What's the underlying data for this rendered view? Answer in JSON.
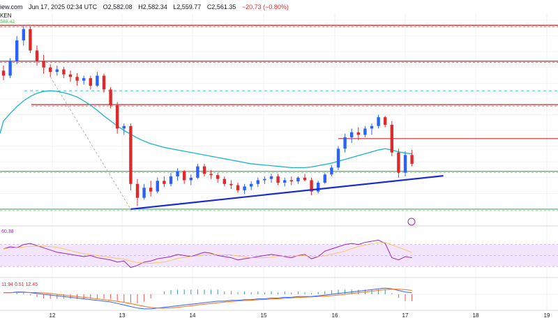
{
  "header": {
    "source": "iew.com",
    "date": "Jun 17, 2025 02:34 UTC",
    "open": "O2,582.08",
    "high": "H2,582.34",
    "low": "L2,559.77",
    "close": "C2,561.35",
    "change": "−20.73 (−0.80%)",
    "left_label": "KEN",
    "price_tag": "588.42"
  },
  "colors": {
    "up": "#2962ff",
    "down": "#e0292b",
    "sma": "#19b5c9",
    "support": "#4caf50",
    "resistance": "#c62828",
    "trendline": "#1b2bd6",
    "rsi_fill": "#f3e5fb",
    "rsi_line": "#9c27b0"
  },
  "chart_data": {
    "type": "candlestick",
    "x_labels": [
      "12",
      "13",
      "14",
      "15",
      "16",
      "17",
      "18",
      "19"
    ],
    "candles": [
      [
        2520,
        2528,
        2505,
        2512
      ],
      [
        2512,
        2540,
        2508,
        2535
      ],
      [
        2535,
        2575,
        2530,
        2568
      ],
      [
        2568,
        2592,
        2560,
        2586
      ],
      [
        2586,
        2590,
        2548,
        2552
      ],
      [
        2552,
        2560,
        2528,
        2535
      ],
      [
        2535,
        2545,
        2515,
        2525
      ],
      [
        2525,
        2530,
        2510,
        2518
      ],
      [
        2518,
        2528,
        2512,
        2522
      ],
      [
        2522,
        2526,
        2508,
        2514
      ],
      [
        2514,
        2520,
        2502,
        2510
      ],
      [
        2510,
        2516,
        2496,
        2504
      ],
      [
        2504,
        2512,
        2498,
        2508
      ],
      [
        2508,
        2512,
        2490,
        2496
      ],
      [
        2496,
        2518,
        2494,
        2512
      ],
      [
        2512,
        2515,
        2485,
        2490
      ],
      [
        2490,
        2494,
        2460,
        2465
      ],
      [
        2465,
        2470,
        2420,
        2428
      ],
      [
        2428,
        2436,
        2418,
        2432
      ],
      [
        2432,
        2436,
        2330,
        2340
      ],
      [
        2340,
        2348,
        2305,
        2318
      ],
      [
        2318,
        2340,
        2315,
        2334
      ],
      [
        2334,
        2345,
        2320,
        2328
      ],
      [
        2328,
        2350,
        2325,
        2345
      ],
      [
        2345,
        2352,
        2335,
        2340
      ],
      [
        2340,
        2358,
        2336,
        2352
      ],
      [
        2352,
        2365,
        2345,
        2360
      ],
      [
        2360,
        2362,
        2340,
        2346
      ],
      [
        2346,
        2355,
        2338,
        2350
      ],
      [
        2350,
        2372,
        2348,
        2368
      ],
      [
        2368,
        2372,
        2352,
        2356
      ],
      [
        2356,
        2362,
        2348,
        2354
      ],
      [
        2354,
        2358,
        2342,
        2348
      ],
      [
        2348,
        2352,
        2336,
        2340
      ],
      [
        2340,
        2346,
        2332,
        2338
      ],
      [
        2338,
        2342,
        2326,
        2330
      ],
      [
        2330,
        2340,
        2324,
        2336
      ],
      [
        2336,
        2344,
        2330,
        2340
      ],
      [
        2340,
        2350,
        2335,
        2346
      ],
      [
        2346,
        2352,
        2340,
        2348
      ],
      [
        2348,
        2356,
        2342,
        2352
      ],
      [
        2352,
        2356,
        2338,
        2342
      ],
      [
        2342,
        2350,
        2336,
        2346
      ],
      [
        2346,
        2352,
        2338,
        2344
      ],
      [
        2344,
        2352,
        2340,
        2350
      ],
      [
        2350,
        2356,
        2344,
        2346
      ],
      [
        2346,
        2350,
        2322,
        2328
      ],
      [
        2328,
        2345,
        2325,
        2342
      ],
      [
        2342,
        2358,
        2340,
        2355
      ],
      [
        2355,
        2370,
        2352,
        2366
      ],
      [
        2366,
        2400,
        2362,
        2396
      ],
      [
        2396,
        2420,
        2390,
        2414
      ],
      [
        2414,
        2428,
        2405,
        2422
      ],
      [
        2422,
        2430,
        2410,
        2418
      ],
      [
        2418,
        2432,
        2414,
        2428
      ],
      [
        2428,
        2436,
        2418,
        2432
      ],
      [
        2432,
        2450,
        2428,
        2446
      ],
      [
        2446,
        2448,
        2430,
        2434
      ],
      [
        2434,
        2440,
        2384,
        2390
      ],
      [
        2390,
        2396,
        2350,
        2358
      ],
      [
        2358,
        2392,
        2352,
        2386
      ],
      [
        2386,
        2394,
        2368,
        2372
      ]
    ],
    "sma": [
      2440,
      2452,
      2463,
      2472,
      2479,
      2484,
      2487,
      2488,
      2487,
      2485,
      2482,
      2478,
      2472,
      2465,
      2457,
      2448,
      2440,
      2432,
      2425,
      2419,
      2413,
      2408,
      2404,
      2401,
      2398,
      2396,
      2394,
      2392,
      2390,
      2388,
      2386,
      2384,
      2382,
      2380,
      2378,
      2376,
      2374,
      2372,
      2371,
      2370,
      2369,
      2368,
      2367,
      2366,
      2366,
      2366,
      2367,
      2369,
      2371,
      2373,
      2376,
      2379,
      2382,
      2385,
      2388,
      2391,
      2394,
      2396,
      2394,
      2391,
      2389,
      2388
    ],
    "levels": {
      "resistance": [
        2592,
        2535,
        2466,
        2412
      ],
      "support": [
        2360,
        2300
      ],
      "dashed": [
        2488
      ]
    },
    "trendline": {
      "from": [
        19,
        2300
      ],
      "to": [
        61,
        2343
      ]
    },
    "rsi": [
      62,
      66,
      64,
      70,
      72,
      68,
      64,
      60,
      56,
      54,
      52,
      50,
      48,
      50,
      46,
      44,
      42,
      38,
      40,
      28,
      32,
      38,
      40,
      44,
      46,
      48,
      52,
      50,
      48,
      52,
      56,
      54,
      50,
      48,
      46,
      42,
      44,
      46,
      48,
      50,
      52,
      50,
      48,
      46,
      50,
      52,
      44,
      48,
      58,
      62,
      66,
      70,
      72,
      70,
      74,
      76,
      78,
      72,
      46,
      42,
      48,
      46
    ],
    "macd": [
      2,
      2,
      3,
      3,
      2,
      1,
      0,
      -1,
      -2,
      -3,
      -4,
      -5,
      -6,
      -7,
      -8,
      -9,
      -10,
      -12,
      -14,
      -16,
      -18,
      -19,
      -19,
      -18,
      -17,
      -16,
      -15,
      -14,
      -13,
      -12,
      -11,
      -10,
      -9,
      -9,
      -8,
      -8,
      -7,
      -7,
      -6,
      -6,
      -5,
      -5,
      -4,
      -4,
      -3,
      -3,
      -3,
      -2,
      -1,
      0,
      1,
      2,
      3,
      4,
      5,
      6,
      7,
      8,
      7,
      5,
      3,
      2
    ],
    "macd_labels": "11.94  0.51  12.45",
    "rsi_label": "60.38"
  }
}
